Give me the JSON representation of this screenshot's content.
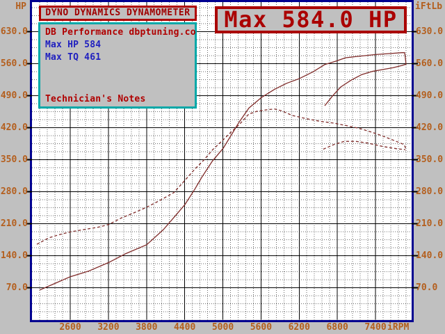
{
  "header": {
    "title": "DYNO DYNAMICS DYNAMOMETER",
    "max_banner": "Max 584.0 HP"
  },
  "info_box": {
    "company_line": "DB Performance dbptuning.co",
    "max_hp_line": "Max HP 584",
    "max_tq_line": "Max TQ 461",
    "notes_label": "Technician's Notes"
  },
  "colors": {
    "background": "#c0c0c0",
    "plot_fill": "#ffffff",
    "plot_border": "#000090",
    "grid_major": "#000000",
    "grid_minor": "#6a6a6a",
    "tick_text": "#b45f1e",
    "curve": "#7f2a28",
    "title_red": "#a00000",
    "info_blue": "#1f1fbf",
    "info_teal": "#00a8a8"
  },
  "chart_data": {
    "type": "line",
    "title": "Max 584.0 HP",
    "max_hp": 584,
    "max_tq": 461,
    "x_axis": {
      "unit": "iRPM",
      "ticks": [
        2600,
        3200,
        3800,
        4400,
        5000,
        5600,
        6200,
        6800,
        7400
      ],
      "minor_step": 120,
      "range": [
        2000,
        7968
      ]
    },
    "y_axis_left": {
      "label": "HP",
      "ticks": [
        630,
        560,
        490,
        420,
        350,
        280,
        210,
        140,
        70
      ],
      "minor_step": 17.5,
      "range": [
        0,
        694
      ]
    },
    "y_axis_right": {
      "label": "iFtLb",
      "ticks": [
        630,
        560,
        490,
        420,
        350,
        280,
        210,
        140,
        70
      ]
    },
    "grid": true,
    "legend": "none",
    "series": [
      {
        "name": "hp-run1",
        "label": "Horsepower run 1",
        "style": "solid",
        "points": [
          [
            2119,
            65
          ],
          [
            2370,
            80
          ],
          [
            2600,
            94
          ],
          [
            2884,
            106
          ],
          [
            3201,
            125
          ],
          [
            3464,
            144
          ],
          [
            3803,
            164
          ],
          [
            4065,
            197
          ],
          [
            4251,
            227
          ],
          [
            4404,
            252
          ],
          [
            4557,
            285
          ],
          [
            4667,
            311
          ],
          [
            4831,
            346
          ],
          [
            5005,
            375
          ],
          [
            5159,
            410
          ],
          [
            5246,
            430
          ],
          [
            5410,
            463
          ],
          [
            5607,
            486
          ],
          [
            5814,
            504
          ],
          [
            6000,
            517
          ],
          [
            6197,
            527
          ],
          [
            6416,
            542
          ],
          [
            6602,
            558
          ],
          [
            6766,
            565
          ],
          [
            6930,
            573
          ],
          [
            7126,
            576
          ],
          [
            7400,
            580
          ],
          [
            7619,
            582
          ],
          [
            7816,
            584
          ],
          [
            7859,
            584
          ],
          [
            7870,
            572
          ],
          [
            7881,
            558
          ]
        ]
      },
      {
        "name": "tq-run1",
        "label": "Torque run 1",
        "style": "dashed",
        "points": [
          [
            2075,
            165
          ],
          [
            2261,
            179
          ],
          [
            2425,
            186
          ],
          [
            2600,
            192
          ],
          [
            2808,
            197
          ],
          [
            3026,
            202
          ],
          [
            3201,
            208
          ],
          [
            3409,
            223
          ],
          [
            3573,
            232
          ],
          [
            3803,
            246
          ],
          [
            4010,
            261
          ],
          [
            4229,
            278
          ],
          [
            4404,
            305
          ],
          [
            4557,
            329
          ],
          [
            4699,
            349
          ],
          [
            4841,
            372
          ],
          [
            4995,
            392
          ],
          [
            5126,
            410
          ],
          [
            5246,
            425
          ],
          [
            5410,
            450
          ],
          [
            5541,
            456
          ],
          [
            5683,
            459
          ],
          [
            5814,
            461
          ],
          [
            5924,
            457
          ],
          [
            6088,
            447
          ],
          [
            6306,
            440
          ],
          [
            6525,
            434
          ],
          [
            6744,
            430
          ],
          [
            6962,
            424
          ],
          [
            7159,
            418
          ],
          [
            7345,
            410
          ],
          [
            7509,
            402
          ],
          [
            7673,
            393
          ],
          [
            7782,
            387
          ],
          [
            7848,
            383
          ],
          [
            7870,
            377
          ],
          [
            7881,
            370
          ]
        ]
      },
      {
        "name": "hp-run2",
        "label": "Horsepower run 2",
        "style": "solid",
        "points": [
          [
            6602,
            468
          ],
          [
            6722,
            489
          ],
          [
            6853,
            509
          ],
          [
            7017,
            524
          ],
          [
            7181,
            536
          ],
          [
            7345,
            543
          ],
          [
            7509,
            547
          ],
          [
            7673,
            551
          ],
          [
            7815,
            556
          ],
          [
            7881,
            559
          ]
        ]
      },
      {
        "name": "tq-run2",
        "label": "Torque run 2",
        "style": "dashed",
        "points": [
          [
            6580,
            373
          ],
          [
            6744,
            383
          ],
          [
            6908,
            390
          ],
          [
            7093,
            390
          ],
          [
            7290,
            386
          ],
          [
            7509,
            379
          ],
          [
            7728,
            374
          ],
          [
            7870,
            372
          ]
        ]
      }
    ]
  }
}
